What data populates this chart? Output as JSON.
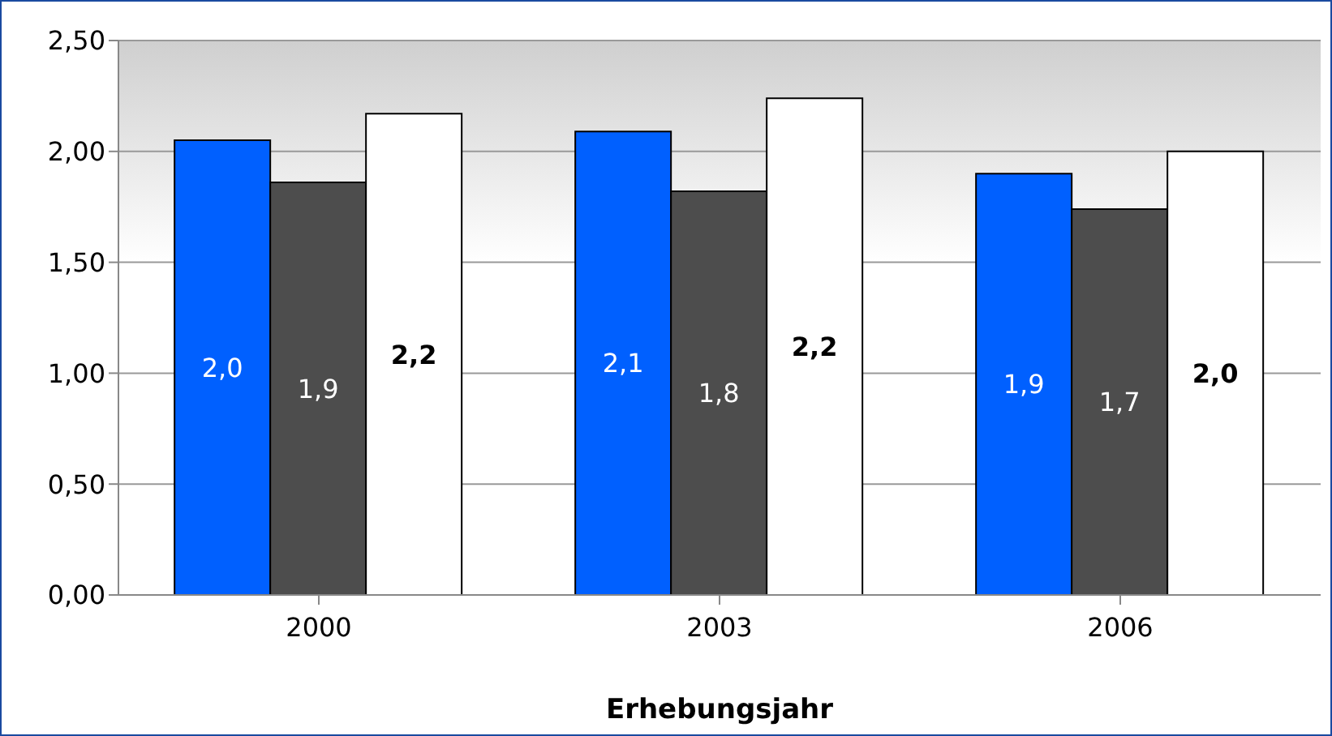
{
  "chart_data": {
    "type": "bar",
    "xlabel": "Erhebungsjahr",
    "categories": [
      "2000",
      "2003",
      "2006"
    ],
    "series": [
      {
        "color": "#0060ff",
        "values": [
          2.05,
          2.09,
          1.9
        ],
        "value_labels": [
          "2,0",
          "2,1",
          "1,9"
        ]
      },
      {
        "color": "#4d4d4d",
        "values": [
          1.86,
          1.82,
          1.74
        ],
        "value_labels": [
          "1,9",
          "1,8",
          "1,7"
        ]
      },
      {
        "color": "#ffffff",
        "values": [
          2.17,
          2.24,
          2.0
        ],
        "value_labels": [
          "2,2",
          "2,2",
          "2,0"
        ]
      }
    ],
    "ylim": [
      0,
      2.5
    ],
    "yticks": [
      {
        "value": 0,
        "label": "0,00"
      },
      {
        "value": 0.5,
        "label": "0,50"
      },
      {
        "value": 1,
        "label": "1,00"
      },
      {
        "value": 1.5,
        "label": "1,50"
      },
      {
        "value": 2,
        "label": "2,00"
      },
      {
        "value": 2.5,
        "label": "2,50"
      }
    ],
    "grid": "y",
    "legend": false
  }
}
